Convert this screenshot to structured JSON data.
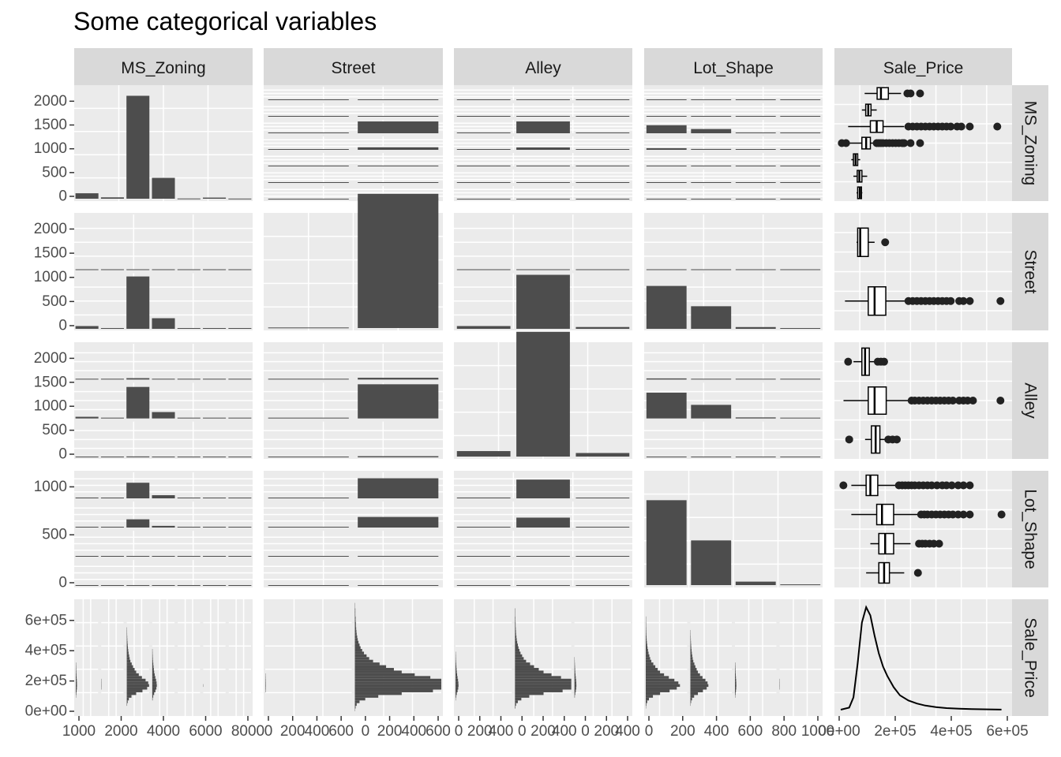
{
  "title": "Some categorical variables",
  "variables": [
    "MS_Zoning",
    "Street",
    "Alley",
    "Lot_Shape",
    "Sale_Price"
  ],
  "colors": {
    "panel": "#ebebeb",
    "grid": "#ffffff",
    "strip": "#d9d9d9",
    "bar": "#4d4d4d",
    "text": "#4d4d4d"
  },
  "chart_data": {
    "type": "pairs",
    "title": "Some categorical variables",
    "variables": [
      "MS_Zoning",
      "Street",
      "Alley",
      "Lot_Shape",
      "Sale_Price"
    ],
    "y_ticks": {
      "MS_Zoning": [
        "0",
        "500",
        "1000",
        "1500",
        "2000"
      ],
      "Street": [
        "0",
        "500",
        "1000",
        "1500",
        "2000"
      ],
      "Alley": [
        "0",
        "500",
        "1000",
        "1500",
        "2000"
      ],
      "Lot_Shape": [
        "0",
        "500",
        "1000"
      ],
      "Sale_Price": [
        "0e+00",
        "2e+05",
        "4e+05",
        "6e+05"
      ]
    },
    "x_ticks": {
      "MS_Zoning": [
        "0",
        "200",
        "400",
        "600",
        "800",
        "1000"
      ],
      "Street": [
        "0",
        "200",
        "400",
        "600"
      ],
      "Alley": [
        "0",
        "200",
        "400"
      ],
      "Lot_Shape": [
        "0",
        "200",
        "400",
        "600",
        "800",
        "1000"
      ],
      "Sale_Price": [
        "0e+00",
        "2e+05",
        "4e+05",
        "6e+05"
      ]
    },
    "x_tick_labels_shown": {
      "MS_Zoning": [
        "1000",
        "2000",
        "4000",
        "6000",
        "8000"
      ],
      "Street": [
        "0",
        "200",
        "400",
        "600",
        "0",
        "200",
        "400",
        "600"
      ],
      "Alley": [
        "0",
        "200",
        "400",
        "0",
        "200",
        "400",
        "0",
        "200",
        "400"
      ],
      "Lot_Shape": [
        "0",
        "200",
        "400",
        "600",
        "800",
        "1000"
      ],
      "Sale_Price": [
        "0e+00",
        "2e+05",
        "4e+05",
        "6e+05"
      ]
    },
    "bars": {
      "MS_Zoning": {
        "ylim": [
          0,
          2400
        ],
        "values": [
          120,
          30,
          2270,
          460,
          5,
          25,
          3
        ]
      },
      "Street": {
        "ylim": [
          0,
          2400
        ],
        "values": [
          12,
          2918
        ]
      },
      "Alley": {
        "ylim": [
          0,
          2400
        ],
        "values": [
          120,
          2732,
          78
        ]
      },
      "Lot_Shape": {
        "ylim": [
          0,
          2400
        ],
        "values": [
          1859,
          979,
          76,
          16
        ]
      }
    },
    "boxplots": {
      "xlim": [
        0,
        780000
      ],
      "MS_Zoning": [
        {
          "q1": 172000,
          "median": 190000,
          "q3": 225000,
          "wmin": 113000,
          "wmax": 285000,
          "outliers": [
            315000,
            330000,
            375000
          ]
        },
        {
          "q1": 118000,
          "median": 130000,
          "q3": 143000,
          "wmin": 100000,
          "wmax": 170000,
          "outliers": []
        },
        {
          "q1": 140000,
          "median": 170000,
          "q3": 200000,
          "wmin": 35000,
          "wmax": 300000,
          "outliers": [
            320000,
            340000,
            360000,
            380000,
            400000,
            420000,
            440000,
            460000,
            480000,
            500000,
            520000,
            550000,
            570000,
            610000,
            740000
          ]
        },
        {
          "q1": 100000,
          "median": 120000,
          "q3": 140000,
          "wmin": 40000,
          "wmax": 160000,
          "outliers": [
            5000,
            25000,
            170000,
            180000,
            190000,
            200000,
            215000,
            230000,
            245000,
            260000,
            275000,
            290000,
            300000,
            330000,
            375000
          ]
        },
        {
          "q1": 60000,
          "median": 70000,
          "q3": 80000,
          "wmin": 50000,
          "wmax": 92000,
          "outliers": []
        },
        {
          "q1": 78000,
          "median": 88000,
          "q3": 100000,
          "wmin": 60000,
          "wmax": 125000,
          "outliers": []
        },
        {
          "q1": 80000,
          "median": 90000,
          "q3": 98000,
          "wmin": 75000,
          "wmax": 102000,
          "outliers": []
        }
      ],
      "Street": [
        {
          "q1": 80000,
          "median": 92000,
          "q3": 130000,
          "wmin": 75000,
          "wmax": 160000,
          "outliers": [
            210000
          ]
        },
        {
          "q1": 130000,
          "median": 160000,
          "q3": 213000,
          "wmin": 20000,
          "wmax": 310000,
          "outliers": [
            320000,
            340000,
            360000,
            380000,
            400000,
            420000,
            440000,
            460000,
            480000,
            500000,
            520000,
            560000,
            580000,
            610000,
            755000
          ]
        }
      ],
      "Alley": [
        {
          "q1": 100000,
          "median": 115000,
          "q3": 135000,
          "wmin": 60000,
          "wmax": 160000,
          "outliers": [
            35000,
            175000,
            190000,
            205000
          ]
        },
        {
          "q1": 130000,
          "median": 160000,
          "q3": 215000,
          "wmin": 13000,
          "wmax": 325000,
          "outliers": [
            335000,
            350000,
            370000,
            390000,
            410000,
            430000,
            450000,
            470000,
            490000,
            510000,
            530000,
            560000,
            580000,
            600000,
            625000,
            755000
          ]
        },
        {
          "q1": 145000,
          "median": 165000,
          "q3": 185000,
          "wmin": 115000,
          "wmax": 210000,
          "outliers": [
            40000,
            225000,
            245000,
            265000
          ]
        }
      ],
      "Lot_Shape": [
        {
          "q1": 120000,
          "median": 140000,
          "q3": 175000,
          "wmin": 50000,
          "wmax": 260000,
          "outliers": [
            12500,
            275000,
            290000,
            305000,
            320000,
            335000,
            350000,
            370000,
            390000,
            410000,
            430000,
            455000,
            480000,
            500000,
            525000,
            555000,
            580000,
            610000
          ]
        },
        {
          "q1": 170000,
          "median": 195000,
          "q3": 250000,
          "wmin": 50000,
          "wmax": 370000,
          "outliers": [
            380000,
            395000,
            410000,
            430000,
            450000,
            470000,
            490000,
            510000,
            530000,
            555000,
            580000,
            610000,
            760000
          ]
        },
        {
          "q1": 180000,
          "median": 210000,
          "q3": 250000,
          "wmin": 140000,
          "wmax": 330000,
          "outliers": [
            370000,
            385000,
            400000,
            420000,
            440000,
            465000
          ]
        },
        {
          "q1": 180000,
          "median": 205000,
          "q3": 230000,
          "wmin": 120000,
          "wmax": 300000,
          "outliers": [
            365000
          ]
        }
      ]
    },
    "histograms": {
      "Sale_Price": {
        "bins_start": 0,
        "bin_width": 20000,
        "counts": [
          1,
          3,
          7,
          18,
          40,
          90,
          180,
          300,
          390,
          430,
          410,
          360,
          290,
          230,
          180,
          150,
          120,
          95,
          70,
          55,
          45,
          35,
          28,
          22,
          18,
          14,
          11,
          9,
          7,
          6,
          5,
          4,
          4,
          3,
          3,
          2,
          2,
          2,
          1,
          1
        ]
      }
    },
    "density": {
      "Sale_Price": {
        "x": [
          0,
          40000,
          60000,
          80000,
          100000,
          120000,
          140000,
          160000,
          180000,
          200000,
          220000,
          250000,
          280000,
          320000,
          360000,
          400000,
          450000,
          500000,
          560000,
          620000,
          700000,
          760000
        ],
        "y": [
          0,
          0.02,
          0.12,
          0.45,
          0.85,
          1.0,
          0.92,
          0.72,
          0.55,
          0.42,
          0.33,
          0.22,
          0.14,
          0.09,
          0.06,
          0.04,
          0.025,
          0.015,
          0.01,
          0.006,
          0.003,
          0.001
        ]
      }
    },
    "grid": true
  }
}
